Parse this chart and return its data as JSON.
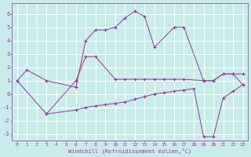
{
  "xlabel": "Windchill (Refroidissement éolien,°C)",
  "bg_color": "#c8ecea",
  "grid_color": "#aad4d4",
  "line_color": "#993399",
  "xlim": [
    -0.5,
    23.5
  ],
  "ylim": [
    -3.5,
    6.8
  ],
  "xticks": [
    0,
    1,
    2,
    3,
    4,
    5,
    6,
    7,
    8,
    9,
    10,
    11,
    12,
    13,
    14,
    15,
    16,
    17,
    18,
    19,
    20,
    21,
    22,
    23
  ],
  "yticks": [
    -3,
    -2,
    -1,
    0,
    1,
    2,
    3,
    4,
    5,
    6
  ],
  "curve1_x": [
    0,
    1,
    3,
    6,
    7,
    8,
    9,
    10,
    11,
    12,
    13,
    14,
    16,
    17,
    19,
    20,
    21,
    22,
    23
  ],
  "curve1_y": [
    1.0,
    1.8,
    1.0,
    0.5,
    4.0,
    4.8,
    4.8,
    5.0,
    5.7,
    6.2,
    5.8,
    3.5,
    5.0,
    5.0,
    1.0,
    1.0,
    1.5,
    1.5,
    0.7
  ],
  "curve2_x": [
    0,
    3,
    6,
    7,
    8,
    10,
    11,
    12,
    13,
    14,
    15,
    16,
    17,
    19,
    20,
    21,
    22,
    23
  ],
  "curve2_y": [
    1.0,
    -1.5,
    1.0,
    2.8,
    2.8,
    1.1,
    1.1,
    1.1,
    1.1,
    1.1,
    1.1,
    1.1,
    1.1,
    1.0,
    1.0,
    1.5,
    1.5,
    1.5
  ],
  "curve3_x": [
    3,
    6,
    7,
    8,
    9,
    10,
    11,
    12,
    13,
    14,
    15,
    16,
    17,
    18,
    19,
    20,
    21,
    22,
    23
  ],
  "curve3_y": [
    -1.5,
    -1.2,
    -1.0,
    -0.9,
    -0.8,
    -0.7,
    -0.6,
    -0.4,
    -0.2,
    -0.0,
    0.1,
    0.2,
    0.3,
    0.4,
    -3.2,
    -3.2,
    -0.3,
    0.2,
    0.7
  ]
}
